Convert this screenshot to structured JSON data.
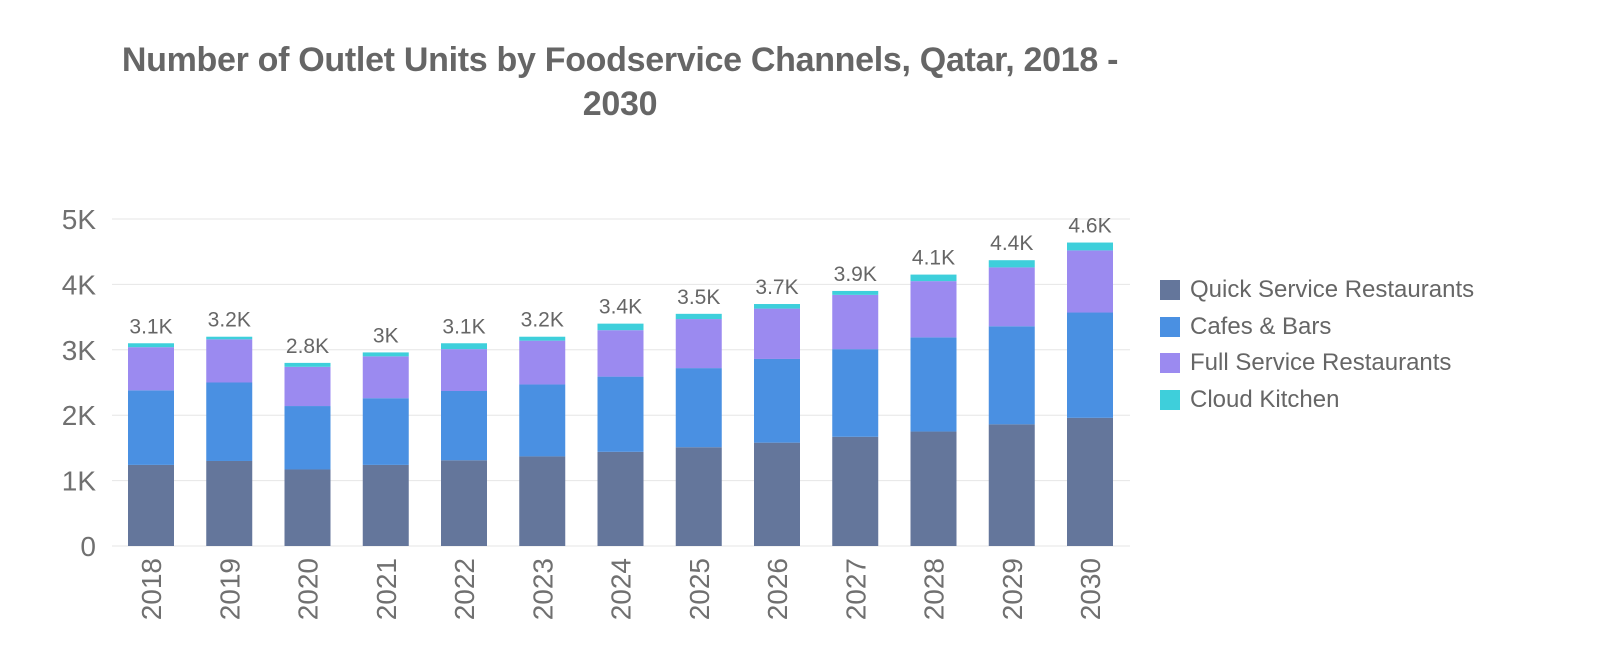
{
  "chart_data": {
    "type": "bar",
    "stacked": true,
    "title": "Number of Outlet Units by Foodservice Channels, Qatar, 2018 - 2030",
    "xlabel": "",
    "ylabel": "",
    "ylim": [
      0,
      5000
    ],
    "y_ticks": [
      {
        "value": 0,
        "label": "0"
      },
      {
        "value": 1000,
        "label": "1K"
      },
      {
        "value": 2000,
        "label": "2K"
      },
      {
        "value": 3000,
        "label": "3K"
      },
      {
        "value": 4000,
        "label": "4K"
      },
      {
        "value": 5000,
        "label": "5K"
      }
    ],
    "grid": true,
    "legend_position": "right",
    "categories": [
      "2018",
      "2019",
      "2020",
      "2021",
      "2022",
      "2023",
      "2024",
      "2025",
      "2026",
      "2027",
      "2028",
      "2029",
      "2030"
    ],
    "series": [
      {
        "name": "Quick Service Restaurants",
        "color": "#64769b",
        "values": [
          1240,
          1300,
          1170,
          1240,
          1310,
          1370,
          1440,
          1510,
          1580,
          1670,
          1750,
          1860,
          1960
        ]
      },
      {
        "name": "Cafes & Bars",
        "color": "#4a90e2",
        "values": [
          1140,
          1200,
          970,
          1020,
          1060,
          1100,
          1150,
          1210,
          1280,
          1340,
          1440,
          1500,
          1610
        ]
      },
      {
        "name": "Full Service Restaurants",
        "color": "#9b8af0",
        "values": [
          660,
          660,
          600,
          640,
          640,
          670,
          710,
          750,
          770,
          830,
          860,
          900,
          950
        ]
      },
      {
        "name": "Cloud Kitchen",
        "color": "#3ecfdb",
        "values": [
          60,
          40,
          60,
          60,
          90,
          60,
          100,
          80,
          70,
          60,
          100,
          110,
          120
        ]
      }
    ],
    "total_labels": [
      "3.1K",
      "3.2K",
      "2.8K",
      "3K",
      "3.1K",
      "3.2K",
      "3.4K",
      "3.5K",
      "3.7K",
      "3.9K",
      "4.1K",
      "4.4K",
      "4.6K"
    ]
  }
}
